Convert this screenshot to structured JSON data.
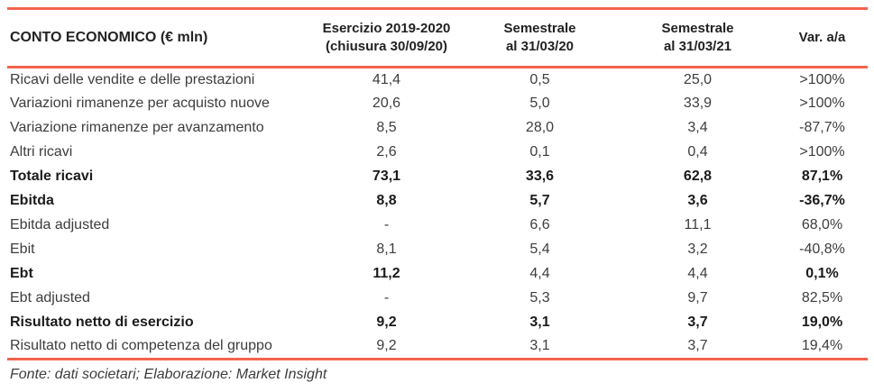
{
  "colors": {
    "accent": "#f4634e",
    "text": "#3d3d3d",
    "bold_text": "#1b1b1b"
  },
  "chart_data": {
    "type": "table",
    "title": "CONTO ECONOMICO (€ mln)",
    "columns": [
      {
        "line1": "Esercizio 2019-2020",
        "line2": "(chiusura 30/09/20)"
      },
      {
        "line1": "Semestrale",
        "line2": "al 31/03/20"
      },
      {
        "line1": "Semestrale",
        "line2": "al 31/03/21"
      },
      {
        "line1": "Var. a/a",
        "line2": ""
      }
    ],
    "rows": [
      {
        "label": "Ricavi delle vendite e delle prestazioni",
        "values": [
          "41,4",
          "0,5",
          "25,0",
          ">100%"
        ],
        "bold": [
          false,
          false,
          false,
          false,
          false
        ]
      },
      {
        "label": "Variazioni rimanenze per acquisto nuove",
        "values": [
          "20,6",
          "5,0",
          "33,9",
          ">100%"
        ],
        "bold": [
          false,
          false,
          false,
          false,
          false
        ]
      },
      {
        "label": "Variazione rimanenze per avanzamento",
        "values": [
          "8,5",
          "28,0",
          "3,4",
          "-87,7%"
        ],
        "bold": [
          false,
          false,
          false,
          false,
          false
        ]
      },
      {
        "label": "Altri ricavi",
        "values": [
          "2,6",
          "0,1",
          "0,4",
          ">100%"
        ],
        "bold": [
          false,
          false,
          false,
          false,
          false
        ]
      },
      {
        "label": "Totale ricavi",
        "values": [
          "73,1",
          "33,6",
          "62,8",
          "87,1%"
        ],
        "bold": [
          true,
          true,
          true,
          true,
          true
        ]
      },
      {
        "label": "Ebitda",
        "values": [
          "8,8",
          "5,7",
          "3,6",
          "-36,7%"
        ],
        "bold": [
          true,
          true,
          true,
          true,
          true
        ]
      },
      {
        "label": "Ebitda adjusted",
        "values": [
          "-",
          "6,6",
          "11,1",
          "68,0%"
        ],
        "bold": [
          false,
          false,
          false,
          false,
          false
        ]
      },
      {
        "label": "Ebit",
        "values": [
          "8,1",
          "5,4",
          "3,2",
          "-40,8%"
        ],
        "bold": [
          false,
          false,
          false,
          false,
          false
        ]
      },
      {
        "label": "Ebt",
        "values": [
          "11,2",
          "4,4",
          "4,4",
          "0,1%"
        ],
        "bold": [
          true,
          true,
          false,
          false,
          true
        ]
      },
      {
        "label": "Ebt adjusted",
        "values": [
          "-",
          "5,3",
          "9,7",
          "82,5%"
        ],
        "bold": [
          false,
          false,
          false,
          false,
          false
        ]
      },
      {
        "label": "Risultato netto di esercizio",
        "values": [
          "9,2",
          "3,1",
          "3,7",
          "19,0%"
        ],
        "bold": [
          true,
          true,
          true,
          true,
          true
        ]
      },
      {
        "label": "Risultato netto di competenza del gruppo",
        "values": [
          "9,2",
          "3,1",
          "3,7",
          "19,4%"
        ],
        "bold": [
          false,
          false,
          false,
          false,
          false
        ]
      }
    ],
    "source_note": "Fonte: dati societari; Elaborazione: Market Insight"
  }
}
